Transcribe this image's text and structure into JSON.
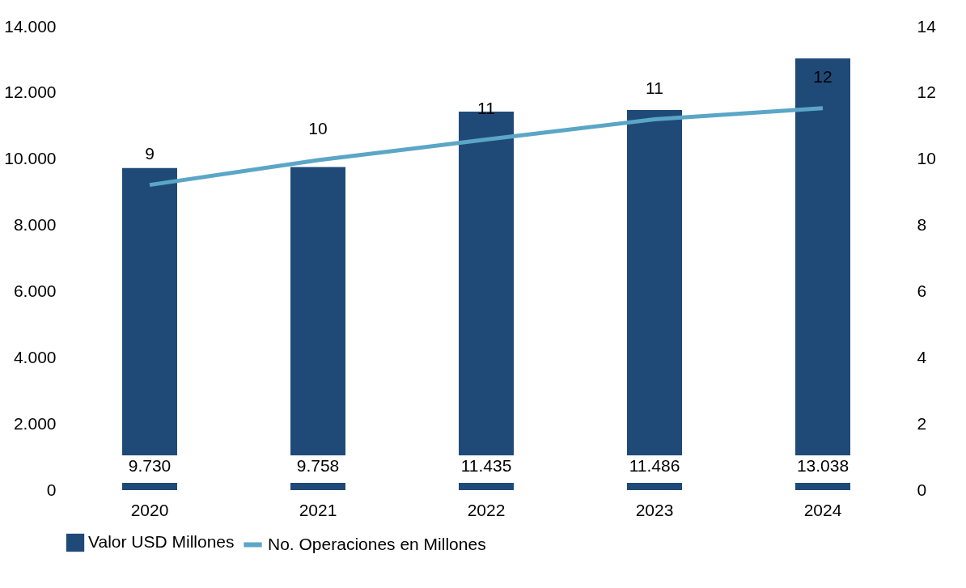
{
  "chart_data": {
    "type": "bar",
    "categories": [
      "2020",
      "2021",
      "2022",
      "2023",
      "2024"
    ],
    "series": [
      {
        "name": "Valor USD Millones",
        "color": "#1f4a78",
        "values": [
          9730,
          9758,
          11435,
          11486,
          13038
        ],
        "value_labels": [
          "9.730",
          "9.758",
          "11.435",
          "11.486",
          "13.038"
        ]
      },
      {
        "name": "No. Operaciones en Millones",
        "type": "line",
        "axis": "y2",
        "color": "#5ba6c6",
        "values": [
          9.22,
          9.97,
          10.59,
          11.2,
          11.54
        ],
        "value_labels": [
          "9",
          "10",
          "11",
          "11",
          "12"
        ]
      }
    ],
    "ylim": [
      0,
      14000
    ],
    "yticks": [
      {
        "value": 0,
        "label": "0"
      },
      {
        "value": 2000,
        "label": "2.000"
      },
      {
        "value": 4000,
        "label": "4.000"
      },
      {
        "value": 6000,
        "label": "6.000"
      },
      {
        "value": 8000,
        "label": "8.000"
      },
      {
        "value": 10000,
        "label": "10.000"
      },
      {
        "value": 12000,
        "label": "12.000"
      },
      {
        "value": 14000,
        "label": "14.000"
      }
    ],
    "y2lim": [
      0,
      14
    ],
    "y2ticks": [
      0,
      2,
      4,
      6,
      8,
      10,
      12,
      14
    ],
    "grid": false,
    "legend": "bottom"
  }
}
